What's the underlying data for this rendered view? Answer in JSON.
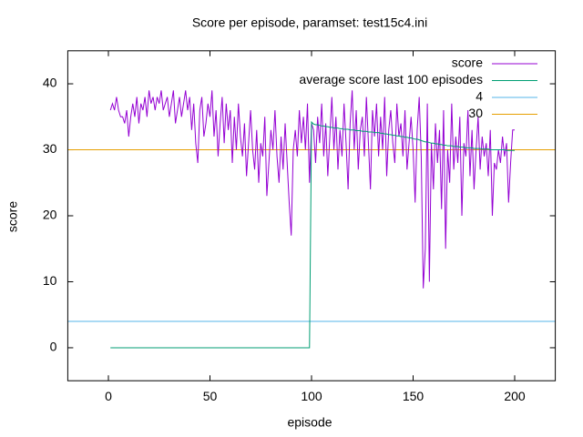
{
  "chart_data": {
    "type": "line",
    "title": "Score per episode, paramset: test15c4.ini",
    "xlabel": "episode",
    "ylabel": "score",
    "xlim": [
      -20,
      220
    ],
    "xticks": [
      0,
      50,
      100,
      150,
      200
    ],
    "ylim": [
      -5,
      45
    ],
    "yticks": [
      0,
      10,
      20,
      30,
      40
    ],
    "x": [
      1,
      2,
      3,
      4,
      5,
      6,
      7,
      8,
      9,
      10,
      11,
      12,
      13,
      14,
      15,
      16,
      17,
      18,
      19,
      20,
      21,
      22,
      23,
      24,
      25,
      26,
      27,
      28,
      29,
      30,
      31,
      32,
      33,
      34,
      35,
      36,
      37,
      38,
      39,
      40,
      41,
      42,
      43,
      44,
      45,
      46,
      47,
      48,
      49,
      50,
      51,
      52,
      53,
      54,
      55,
      56,
      57,
      58,
      59,
      60,
      61,
      62,
      63,
      64,
      65,
      66,
      67,
      68,
      69,
      70,
      71,
      72,
      73,
      74,
      75,
      76,
      77,
      78,
      79,
      80,
      81,
      82,
      83,
      84,
      85,
      86,
      87,
      88,
      89,
      90,
      91,
      92,
      93,
      94,
      95,
      96,
      97,
      98,
      99,
      100,
      101,
      102,
      103,
      104,
      105,
      106,
      107,
      108,
      109,
      110,
      111,
      112,
      113,
      114,
      115,
      116,
      117,
      118,
      119,
      120,
      121,
      122,
      123,
      124,
      125,
      126,
      127,
      128,
      129,
      130,
      131,
      132,
      133,
      134,
      135,
      136,
      137,
      138,
      139,
      140,
      141,
      142,
      143,
      144,
      145,
      146,
      147,
      148,
      149,
      150,
      151,
      152,
      153,
      154,
      155,
      156,
      157,
      158,
      159,
      160,
      161,
      162,
      163,
      164,
      165,
      166,
      167,
      168,
      169,
      170,
      171,
      172,
      173,
      174,
      175,
      176,
      177,
      178,
      179,
      180,
      181,
      182,
      183,
      184,
      185,
      186,
      187,
      188,
      189,
      190,
      191,
      192,
      193,
      194,
      195,
      196,
      197,
      198,
      199,
      200
    ],
    "series": [
      {
        "name": "score",
        "color": "#9400d3",
        "values": [
          36,
          37,
          36,
          38,
          36,
          35,
          35,
          34,
          36,
          32,
          35,
          37,
          35,
          38,
          34,
          37,
          36,
          38,
          35,
          39,
          37,
          38,
          36,
          38,
          37,
          39,
          36,
          37,
          38,
          35,
          37,
          39,
          34,
          36,
          38,
          35,
          37,
          39,
          36,
          38,
          33,
          37,
          31,
          28,
          36,
          38,
          32,
          34,
          37,
          35,
          39,
          32,
          36,
          29,
          34,
          38,
          31,
          37,
          33,
          36,
          28,
          35,
          30,
          37,
          32,
          29,
          34,
          26,
          31,
          36,
          30,
          27,
          33,
          25,
          31,
          29,
          35,
          23,
          28,
          33,
          30,
          36,
          29,
          25,
          32,
          27,
          34,
          28,
          22,
          17,
          30,
          33,
          29,
          36,
          31,
          35,
          30,
          37,
          25,
          34,
          33,
          28,
          35,
          31,
          37,
          29,
          34,
          26,
          32,
          38,
          30,
          35,
          27,
          33,
          29,
          37,
          31,
          24,
          34,
          39,
          30,
          36,
          27,
          33,
          35,
          29,
          38,
          31,
          24,
          36,
          32,
          37,
          29,
          35,
          30,
          38,
          26,
          33,
          36,
          31,
          28,
          37,
          32,
          34,
          29,
          36,
          27,
          31,
          35,
          30,
          22,
          33,
          38,
          29,
          9,
          15,
          37,
          10,
          31,
          24,
          34,
          28,
          33,
          21,
          36,
          15,
          30,
          25,
          37,
          27,
          32,
          28,
          35,
          20,
          31,
          29,
          36,
          26,
          33,
          24,
          30,
          35,
          27,
          32,
          29,
          31,
          26,
          33,
          20,
          28,
          27,
          30,
          28,
          32,
          29,
          31,
          22,
          28,
          33,
          33
        ]
      },
      {
        "name": "average score last 100 episodes",
        "color": "#009e73",
        "values": [
          0,
          0,
          0,
          0,
          0,
          0,
          0,
          0,
          0,
          0,
          0,
          0,
          0,
          0,
          0,
          0,
          0,
          0,
          0,
          0,
          0,
          0,
          0,
          0,
          0,
          0,
          0,
          0,
          0,
          0,
          0,
          0,
          0,
          0,
          0,
          0,
          0,
          0,
          0,
          0,
          0,
          0,
          0,
          0,
          0,
          0,
          0,
          0,
          0,
          0,
          0,
          0,
          0,
          0,
          0,
          0,
          0,
          0,
          0,
          0,
          0,
          0,
          0,
          0,
          0,
          0,
          0,
          0,
          0,
          0,
          0,
          0,
          0,
          0,
          0,
          0,
          0,
          0,
          0,
          0,
          0,
          0,
          0,
          0,
          0,
          0,
          0,
          0,
          0,
          0,
          0,
          0,
          0,
          0,
          0,
          0,
          0,
          0,
          0,
          34.2,
          33.9,
          33.8,
          33.8,
          33.7,
          33.6,
          33.6,
          33.5,
          33.5,
          33.4,
          33.4,
          33.3,
          33.3,
          33.3,
          33.2,
          33.2,
          33.1,
          33.1,
          33.1,
          33.0,
          33.0,
          33.0,
          32.9,
          32.9,
          32.9,
          32.8,
          32.8,
          32.8,
          32.7,
          32.7,
          32.7,
          32.6,
          32.6,
          32.6,
          32.5,
          32.5,
          32.4,
          32.4,
          32.3,
          32.3,
          32.2,
          32.2,
          32.1,
          32.1,
          32.0,
          32.0,
          31.9,
          31.9,
          31.8,
          31.8,
          31.7,
          31.6,
          31.6,
          31.5,
          31.4,
          31.3,
          31.2,
          31.2,
          31.1,
          31.0,
          31.0,
          30.9,
          30.9,
          30.8,
          30.8,
          30.7,
          30.7,
          30.6,
          30.6,
          30.6,
          30.5,
          30.5,
          30.5,
          30.4,
          30.4,
          30.4,
          30.3,
          30.3,
          30.3,
          30.3,
          30.2,
          30.2,
          30.2,
          30.2,
          30.1,
          30.1,
          30.1,
          30.1,
          30.0,
          30.0,
          30.0,
          30.0,
          30.0,
          30.0,
          30.0,
          30.0,
          29.9,
          29.9,
          29.9,
          29.9,
          29.9
        ]
      }
    ],
    "hlines": [
      {
        "name": "4",
        "color": "#56b4e9",
        "y": 4
      },
      {
        "name": "30",
        "color": "#e69f00",
        "y": 30
      }
    ],
    "legend": "top-right"
  }
}
